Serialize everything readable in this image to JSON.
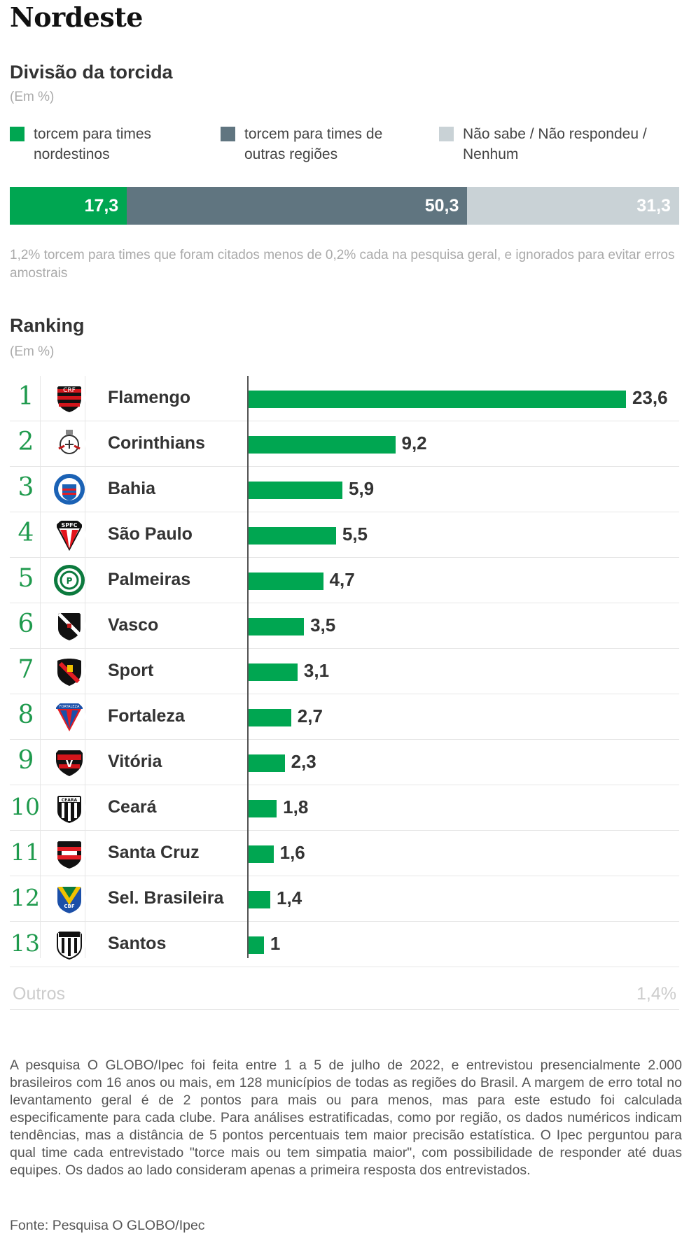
{
  "title": "Nordeste",
  "division": {
    "heading": "Divisão da torcida",
    "unit": "(Em %)",
    "legend": [
      {
        "label": "torcem para times nordestinos",
        "color": "#00a651"
      },
      {
        "label": "torcem para times de outras regiões",
        "color": "#607580"
      },
      {
        "label": "Não sabe / Não respondeu / Nenhum",
        "color": "#c9d2d6"
      }
    ],
    "note": "1,2% torcem para times que foram citados menos de 0,2% cada na pesquisa geral, e ignorados para evitar erros amostrais"
  },
  "ranking": {
    "heading": "Ranking",
    "unit": "(Em %)",
    "others_label": "Outros",
    "others_value": "1,4%"
  },
  "methodology": "A pesquisa O GLOBO/Ipec foi feita entre 1 a 5 de julho de 2022, e entrevistou presencialmente 2.000 brasileiros com 16 anos ou mais, em 128 municípios de todas as regiões do Brasil. A margem de erro total no levantamento geral é de 2 pontos para mais ou para menos, mas para este estudo foi calculada especificamente para cada clube. Para análises estratificadas, como por região, os dados numéricos indicam tendências, mas a distância de 5 pontos percentuais tem maior precisão estatística. O Ipec perguntou para qual time cada entrevistado \"torce mais ou tem simpatia maior\", com possibilidade de responder até duas equipes. Os dados ao lado consideram apenas a primeira resposta dos entrevistados.",
  "source": "Fonte: Pesquisa O GLOBO/Ipec",
  "chart_data": [
    {
      "type": "bar",
      "stacked": true,
      "orientation": "horizontal",
      "series": [
        {
          "name": "torcem para times nordestinos",
          "value": 17.3,
          "label": "17,3",
          "color": "#00a651"
        },
        {
          "name": "torcem para times de outras regiões",
          "value": 50.3,
          "label": "50,3",
          "color": "#607580"
        },
        {
          "name": "Não sabe / Não respondeu / Nenhum",
          "value": 31.3,
          "label": "31,3",
          "color": "#c9d2d6"
        }
      ]
    },
    {
      "type": "bar",
      "orientation": "horizontal",
      "color": "#00a651",
      "xlim": [
        0,
        23.6
      ],
      "rows": [
        {
          "rank": "1",
          "team": "Flamengo",
          "value": 23.6,
          "label": "23,6",
          "logo": "flamengo-crest-icon"
        },
        {
          "rank": "2",
          "team": "Corinthians",
          "value": 9.2,
          "label": "9,2",
          "logo": "corinthians-crest-icon"
        },
        {
          "rank": "3",
          "team": "Bahia",
          "value": 5.9,
          "label": "5,9",
          "logo": "bahia-crest-icon"
        },
        {
          "rank": "4",
          "team": "São Paulo",
          "value": 5.5,
          "label": "5,5",
          "logo": "sao-paulo-crest-icon"
        },
        {
          "rank": "5",
          "team": "Palmeiras",
          "value": 4.7,
          "label": "4,7",
          "logo": "palmeiras-crest-icon"
        },
        {
          "rank": "6",
          "team": "Vasco",
          "value": 3.5,
          "label": "3,5",
          "logo": "vasco-crest-icon"
        },
        {
          "rank": "7",
          "team": "Sport",
          "value": 3.1,
          "label": "3,1",
          "logo": "sport-crest-icon"
        },
        {
          "rank": "8",
          "team": "Fortaleza",
          "value": 2.7,
          "label": "2,7",
          "logo": "fortaleza-crest-icon"
        },
        {
          "rank": "9",
          "team": "Vitória",
          "value": 2.3,
          "label": "2,3",
          "logo": "vitoria-crest-icon"
        },
        {
          "rank": "10",
          "team": "Ceará",
          "value": 1.8,
          "label": "1,8",
          "logo": "ceara-crest-icon"
        },
        {
          "rank": "11",
          "team": "Santa Cruz",
          "value": 1.6,
          "label": "1,6",
          "logo": "santa-cruz-crest-icon"
        },
        {
          "rank": "12",
          "team": "Sel. Brasileira",
          "value": 1.4,
          "label": "1,4",
          "logo": "selecao-crest-icon"
        },
        {
          "rank": "13",
          "team": "Santos",
          "value": 1,
          "label": "1",
          "logo": "santos-crest-icon"
        }
      ]
    }
  ]
}
